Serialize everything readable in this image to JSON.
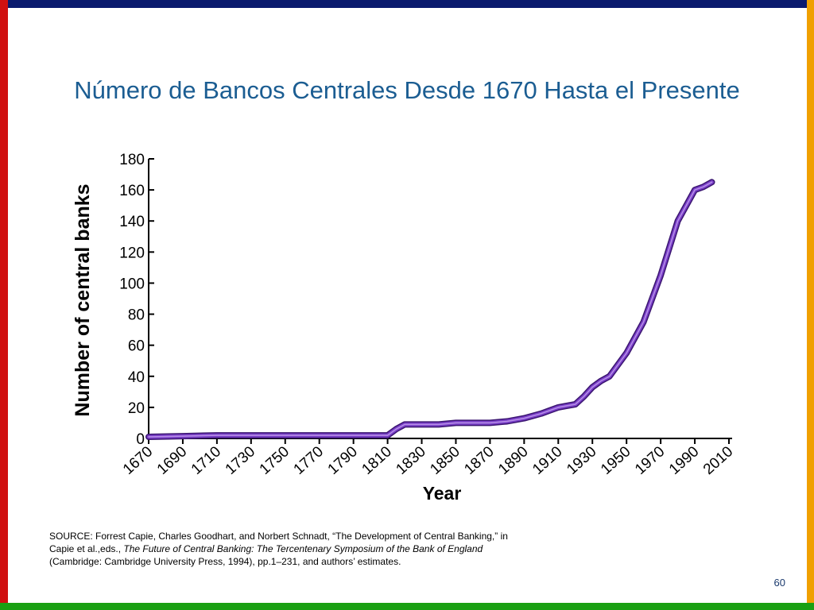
{
  "slide": {
    "title": "Número de Bancos Centrales Desde 1670 Hasta el Presente",
    "source_prefix": "SOURCE: Forrest Capie, Charles Goodhart, and Norbert Schnadt, “The Development of Central Banking,” in Capie et al.,eds., ",
    "source_book_title": "The Future of Central Banking: The Tercentenary Symposium of the Bank of England",
    "source_suffix": " (Cambridge: Cambridge University Press, 1994), pp.1–231, and authors’ estimates.",
    "page_number": "60",
    "frame_colors": {
      "top": "#0a1a6e",
      "left": "#d01010",
      "right": "#f0a000",
      "bottom": "#1aa012"
    }
  },
  "chart_data": {
    "type": "line",
    "title": "",
    "xlabel": "Year",
    "ylabel": "Number of central banks",
    "xlim": [
      1670,
      2010
    ],
    "ylim": [
      0,
      180
    ],
    "xticks": [
      1670,
      1690,
      1710,
      1730,
      1750,
      1770,
      1790,
      1810,
      1830,
      1850,
      1870,
      1890,
      1910,
      1930,
      1950,
      1970,
      1990,
      2010
    ],
    "yticks": [
      0,
      20,
      40,
      60,
      80,
      100,
      120,
      140,
      160,
      180
    ],
    "grid": false,
    "legend": "none",
    "line_color": "#7a3fc8",
    "line_outline_color": "#3a1570",
    "series": [
      {
        "x": [
          1670,
          1690,
          1710,
          1730,
          1750,
          1770,
          1790,
          1800,
          1810,
          1815,
          1820,
          1835,
          1840,
          1850,
          1860,
          1870,
          1880,
          1890,
          1900,
          1905,
          1910,
          1915,
          1920,
          1925,
          1930,
          1935,
          1940,
          1950,
          1960,
          1970,
          1980,
          1990,
          1995,
          2000
        ],
        "y": [
          1,
          1.5,
          2,
          2,
          2,
          2,
          2,
          2,
          2,
          6,
          9,
          9,
          9,
          10,
          10,
          10,
          11,
          13,
          16,
          18,
          20,
          21,
          22,
          27,
          33,
          37,
          40,
          55,
          75,
          105,
          140,
          160,
          162,
          165
        ]
      }
    ]
  }
}
